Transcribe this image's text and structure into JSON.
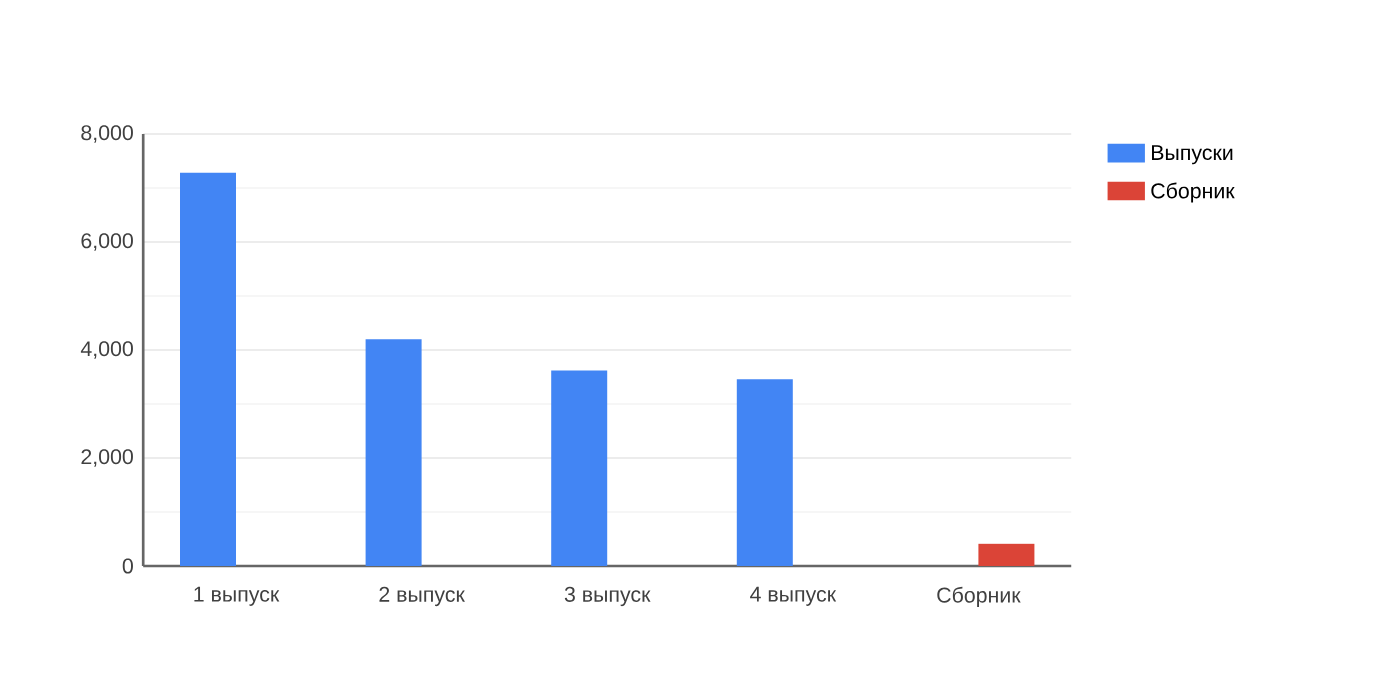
{
  "chart_data": {
    "type": "bar",
    "categories": [
      "1 выпуск",
      "2 выпуск",
      "3 выпуск",
      "4 выпуск",
      "Сборник"
    ],
    "series": [
      {
        "name": "Выпуски",
        "color": "#4285f4",
        "values": [
          7280,
          4200,
          3620,
          3460,
          null
        ]
      },
      {
        "name": "Сборник",
        "color": "#db4437",
        "values": [
          null,
          null,
          null,
          null,
          410
        ]
      }
    ],
    "ylim": [
      0,
      8000
    ],
    "yticks": [
      {
        "value": 0,
        "label": "0"
      },
      {
        "value": 2000,
        "label": "2,000"
      },
      {
        "value": 4000,
        "label": "4,000"
      },
      {
        "value": 6000,
        "label": "6,000"
      },
      {
        "value": 8000,
        "label": "8,000"
      }
    ],
    "grid": "y",
    "legend": "top right"
  }
}
